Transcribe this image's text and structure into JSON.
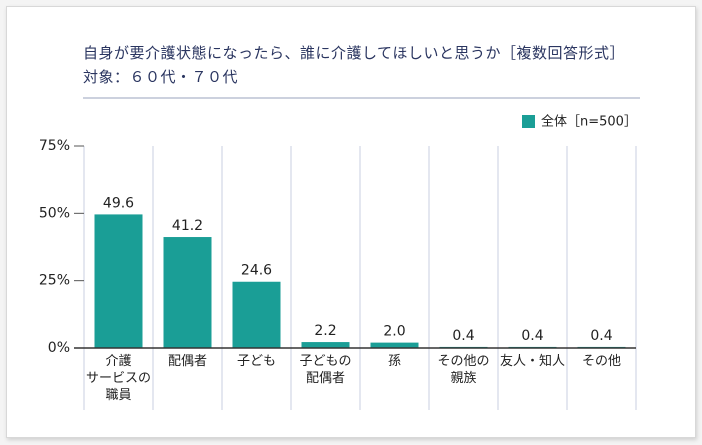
{
  "chart_data": {
    "type": "bar",
    "title": "自身が要介護状態になったら、誰に介護してほしいと思うか［複数回答形式］",
    "subtitle": "対象：６０代・７０代",
    "categories": [
      "介護\nサービスの\n職員",
      "配偶者",
      "子ども",
      "子どもの\n配偶者",
      "孫",
      "その他の\n親族",
      "友人・知人",
      "その他"
    ],
    "series": [
      {
        "name": "全体［n=500］",
        "color": "#1a9e96",
        "values": [
          49.6,
          41.2,
          24.6,
          2.2,
          2.0,
          0.4,
          0.4,
          0.4
        ],
        "value_labels": [
          "49.6",
          "41.2",
          "24.6",
          "2.2",
          "2.0",
          "0.4",
          "0.4",
          "0.4"
        ]
      }
    ],
    "ylim": [
      0,
      75
    ],
    "yticks": [
      {
        "value": 0,
        "label": "0%"
      },
      {
        "value": 25,
        "label": "25%"
      },
      {
        "value": 50,
        "label": "50%"
      },
      {
        "value": 75,
        "label": "75%"
      }
    ]
  }
}
